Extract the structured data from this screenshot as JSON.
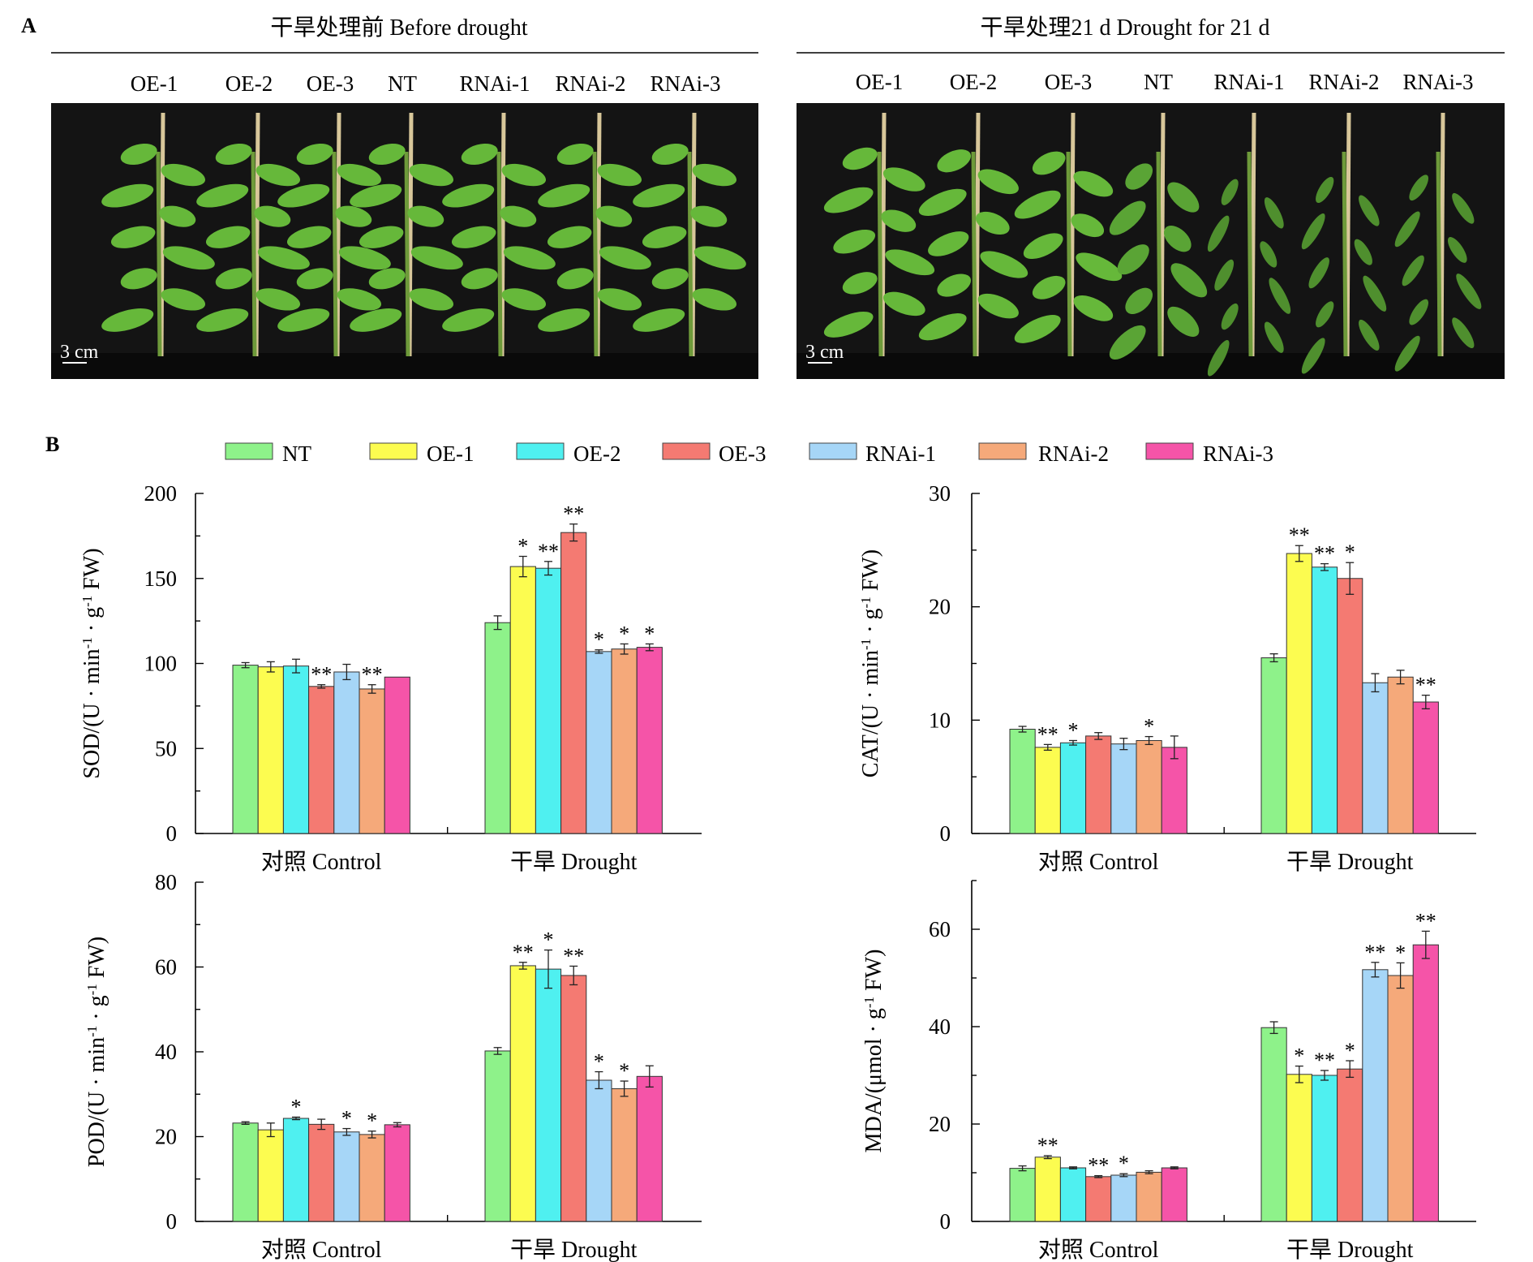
{
  "panel_a": {
    "label": "A",
    "left": {
      "title": "干旱处理前 Before drought",
      "genotypes": [
        "OE-1",
        "OE-2",
        "OE-3",
        "NT",
        "RNAi-1",
        "RNAi-2",
        "RNAi-3"
      ],
      "scale_bar": "3 cm",
      "condition": "healthy"
    },
    "right": {
      "title": "干旱处理21 d  Drought for 21 d",
      "genotypes": [
        "OE-1",
        "OE-2",
        "OE-3",
        "NT",
        "RNAi-1",
        "RNAi-2",
        "RNAi-3"
      ],
      "scale_bar": "3 cm",
      "condition": "drought",
      "wilt_levels": [
        0.1,
        0.15,
        0.2,
        0.5,
        0.85,
        0.8,
        0.75
      ]
    }
  },
  "panel_b": {
    "label": "B",
    "legend": [
      {
        "name": "NT",
        "color": "#8ef28a"
      },
      {
        "name": "OE-1",
        "color": "#fcfc50"
      },
      {
        "name": "OE-2",
        "color": "#4ff0f0"
      },
      {
        "name": "OE-3",
        "color": "#f47a72"
      },
      {
        "name": "RNAi-1",
        "color": "#a6d6f7"
      },
      {
        "name": "RNAi-2",
        "color": "#f5a97a"
      },
      {
        "name": "RNAi-3",
        "color": "#f554a8"
      }
    ]
  },
  "chart_data": [
    {
      "type": "bar",
      "ylabel_main": "SOD/(U · min",
      "ylabel_parts": [
        "SOD/(U · min",
        "-1",
        " · g",
        "-1",
        " FW)"
      ],
      "categories": [
        "对照 Control",
        "干旱 Drought"
      ],
      "ylim": [
        0,
        200
      ],
      "yticks": [
        0,
        50,
        100,
        150,
        200
      ],
      "series": [
        {
          "name": "NT",
          "values": [
            99,
            124
          ],
          "errors": [
            1.5,
            4
          ],
          "sig": [
            "",
            ""
          ]
        },
        {
          "name": "OE-1",
          "values": [
            98,
            157
          ],
          "errors": [
            3,
            6
          ],
          "sig": [
            "",
            "*"
          ]
        },
        {
          "name": "OE-2",
          "values": [
            98.5,
            156
          ],
          "errors": [
            4,
            4
          ],
          "sig": [
            "",
            "**"
          ]
        },
        {
          "name": "OE-3",
          "values": [
            86.5,
            177
          ],
          "errors": [
            1,
            5
          ],
          "sig": [
            "**",
            "**"
          ]
        },
        {
          "name": "RNAi-1",
          "values": [
            95,
            107
          ],
          "errors": [
            4.5,
            1
          ],
          "sig": [
            "",
            "*"
          ]
        },
        {
          "name": "RNAi-2",
          "values": [
            85,
            108.5
          ],
          "errors": [
            2.5,
            3
          ],
          "sig": [
            "**",
            "*"
          ]
        },
        {
          "name": "RNAi-3",
          "values": [
            92,
            109.5
          ],
          "errors": [
            0,
            2
          ],
          "sig": [
            "",
            "*"
          ]
        }
      ]
    },
    {
      "type": "bar",
      "ylabel_parts": [
        "CAT/(U · min",
        "-1",
        " · g",
        "-1",
        " FW)"
      ],
      "categories": [
        "对照 Control",
        "干旱 Drought"
      ],
      "ylim": [
        0,
        30
      ],
      "yticks": [
        0,
        10,
        20,
        30
      ],
      "series": [
        {
          "name": "NT",
          "values": [
            9.2,
            15.5
          ],
          "errors": [
            0.25,
            0.35
          ],
          "sig": [
            "",
            ""
          ]
        },
        {
          "name": "OE-1",
          "values": [
            7.6,
            24.7
          ],
          "errors": [
            0.25,
            0.7
          ],
          "sig": [
            "**",
            "**"
          ]
        },
        {
          "name": "OE-2",
          "values": [
            8.0,
            23.5
          ],
          "errors": [
            0.2,
            0.3
          ],
          "sig": [
            "*",
            "**"
          ]
        },
        {
          "name": "OE-3",
          "values": [
            8.6,
            22.5
          ],
          "errors": [
            0.3,
            1.4
          ],
          "sig": [
            "",
            "*"
          ]
        },
        {
          "name": "RNAi-1",
          "values": [
            7.9,
            13.3
          ],
          "errors": [
            0.5,
            0.8
          ],
          "sig": [
            "",
            ""
          ]
        },
        {
          "name": "RNAi-2",
          "values": [
            8.2,
            13.8
          ],
          "errors": [
            0.35,
            0.6
          ],
          "sig": [
            "*",
            ""
          ]
        },
        {
          "name": "RNAi-3",
          "values": [
            7.6,
            11.6
          ],
          "errors": [
            1.0,
            0.6
          ],
          "sig": [
            "",
            "**"
          ]
        }
      ]
    },
    {
      "type": "bar",
      "ylabel_parts": [
        "POD/(U · min",
        "-1",
        " · g",
        "-1",
        " FW)"
      ],
      "categories": [
        "对照 Control",
        "干旱 Drought"
      ],
      "ylim": [
        0,
        80
      ],
      "yticks": [
        0,
        20,
        40,
        60,
        80
      ],
      "series": [
        {
          "name": "NT",
          "values": [
            23.2,
            40.2
          ],
          "errors": [
            0.3,
            0.8
          ],
          "sig": [
            "",
            ""
          ]
        },
        {
          "name": "OE-1",
          "values": [
            21.6,
            60.3
          ],
          "errors": [
            1.6,
            0.8
          ],
          "sig": [
            "",
            "**"
          ]
        },
        {
          "name": "OE-2",
          "values": [
            24.3,
            59.5
          ],
          "errors": [
            0.3,
            4.5
          ],
          "sig": [
            "*",
            "*"
          ]
        },
        {
          "name": "OE-3",
          "values": [
            22.9,
            58.0
          ],
          "errors": [
            1.2,
            2.2
          ],
          "sig": [
            "",
            "**"
          ]
        },
        {
          "name": "RNAi-1",
          "values": [
            21.1,
            33.3
          ],
          "errors": [
            0.8,
            2.0
          ],
          "sig": [
            "*",
            "*"
          ]
        },
        {
          "name": "RNAi-2",
          "values": [
            20.5,
            31.3
          ],
          "errors": [
            0.8,
            1.8
          ],
          "sig": [
            "*",
            "*"
          ]
        },
        {
          "name": "RNAi-3",
          "values": [
            22.8,
            34.2
          ],
          "errors": [
            0.5,
            2.5
          ],
          "sig": [
            "",
            ""
          ]
        }
      ]
    },
    {
      "type": "bar",
      "ylabel_parts": [
        "MDA/(μmol · g",
        "-1",
        " FW)"
      ],
      "categories": [
        "对照  Control",
        "干旱 Drought"
      ],
      "ylim": [
        0,
        70
      ],
      "yticks": [
        0,
        20,
        40,
        60
      ],
      "series": [
        {
          "name": "NT",
          "values": [
            10.9,
            39.8
          ],
          "errors": [
            0.5,
            1.2
          ],
          "sig": [
            "",
            ""
          ]
        },
        {
          "name": "OE-1",
          "values": [
            13.2,
            30.2
          ],
          "errors": [
            0.3,
            1.7
          ],
          "sig": [
            "**",
            "*"
          ]
        },
        {
          "name": "OE-2",
          "values": [
            11.0,
            30.0
          ],
          "errors": [
            0.2,
            1.0
          ],
          "sig": [
            "",
            "**"
          ]
        },
        {
          "name": "OE-3",
          "values": [
            9.2,
            31.3
          ],
          "errors": [
            0.2,
            1.7
          ],
          "sig": [
            "**",
            "*"
          ]
        },
        {
          "name": "RNAi-1",
          "values": [
            9.5,
            51.7
          ],
          "errors": [
            0.3,
            1.5
          ],
          "sig": [
            "*",
            "**"
          ]
        },
        {
          "name": "RNAi-2",
          "values": [
            10.1,
            50.5
          ],
          "errors": [
            0.3,
            2.6
          ],
          "sig": [
            "",
            "*"
          ]
        },
        {
          "name": "RNAi-3",
          "values": [
            11.0,
            56.8
          ],
          "errors": [
            0.2,
            2.8
          ],
          "sig": [
            "",
            "**"
          ]
        }
      ]
    }
  ]
}
